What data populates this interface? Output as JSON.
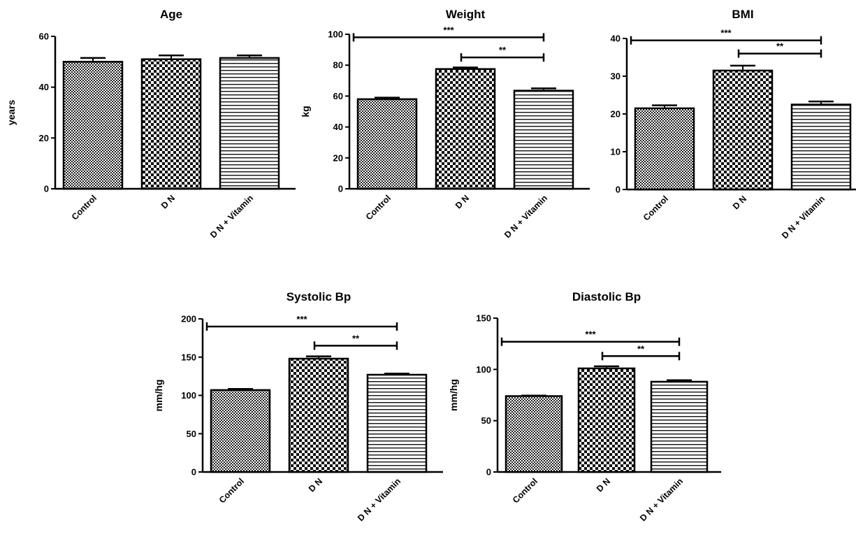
{
  "chart_data": [
    {
      "type": "bar",
      "title": "Age",
      "ylabel": "years",
      "categories": [
        "Control",
        "D N",
        "D N + Vitamin"
      ],
      "values": [
        50,
        51,
        51.5
      ],
      "errors": [
        1.5,
        1.5,
        1
      ],
      "patterns": [
        "dense-check",
        "check",
        "hlines"
      ],
      "ylim": [
        0,
        60
      ],
      "yticks": [
        0,
        20,
        40,
        60
      ],
      "significance": []
    },
    {
      "type": "bar",
      "title": "Weight",
      "ylabel": "kg",
      "categories": [
        "Control",
        "D N",
        "D N + Vitamin"
      ],
      "values": [
        58,
        77.5,
        63.5
      ],
      "errors": [
        1,
        1,
        1.5
      ],
      "patterns": [
        "dense-check",
        "check",
        "hlines"
      ],
      "ylim": [
        0,
        100
      ],
      "yticks": [
        0,
        20,
        40,
        60,
        80,
        100
      ],
      "significance": [
        {
          "label": "***",
          "from": 0,
          "to": 2,
          "y": 98
        },
        {
          "label": "**",
          "from": 1,
          "to": 2,
          "y": 85
        }
      ]
    },
    {
      "type": "bar",
      "title": "BMI",
      "ylabel": "",
      "categories": [
        "Control",
        "D N",
        "D N + Vitamin"
      ],
      "values": [
        21.5,
        31.5,
        22.5
      ],
      "errors": [
        0.8,
        1.3,
        0.8
      ],
      "patterns": [
        "dense-check",
        "check",
        "hlines"
      ],
      "ylim": [
        0,
        40
      ],
      "yticks": [
        0,
        10,
        20,
        30,
        40
      ],
      "significance": [
        {
          "label": "***",
          "from": 0,
          "to": 2,
          "y": 39.5
        },
        {
          "label": "**",
          "from": 1,
          "to": 2,
          "y": 36
        }
      ]
    },
    {
      "type": "bar",
      "title": "Systolic Bp",
      "ylabel": "mm/hg",
      "categories": [
        "Control",
        "D N",
        "D N + Vitamin"
      ],
      "values": [
        107,
        148,
        127
      ],
      "errors": [
        1.5,
        3,
        1.5
      ],
      "patterns": [
        "dense-check",
        "check",
        "hlines"
      ],
      "ylim": [
        0,
        200
      ],
      "yticks": [
        0,
        50,
        100,
        150,
        200
      ],
      "significance": [
        {
          "label": "***",
          "from": 0,
          "to": 2,
          "y": 190
        },
        {
          "label": "**",
          "from": 1,
          "to": 2,
          "y": 165
        }
      ]
    },
    {
      "type": "bar",
      "title": "Diastolic Bp",
      "ylabel": "mm/hg",
      "categories": [
        "Control",
        "D N",
        "D N + Vitamin"
      ],
      "values": [
        74,
        101,
        88
      ],
      "errors": [
        0.5,
        2,
        1.5
      ],
      "patterns": [
        "dense-check",
        "check",
        "hlines"
      ],
      "ylim": [
        0,
        150
      ],
      "yticks": [
        0,
        50,
        100,
        150
      ],
      "significance": [
        {
          "label": "***",
          "from": 0,
          "to": 2,
          "y": 127
        },
        {
          "label": "**",
          "from": 1,
          "to": 2,
          "y": 113
        }
      ]
    }
  ]
}
